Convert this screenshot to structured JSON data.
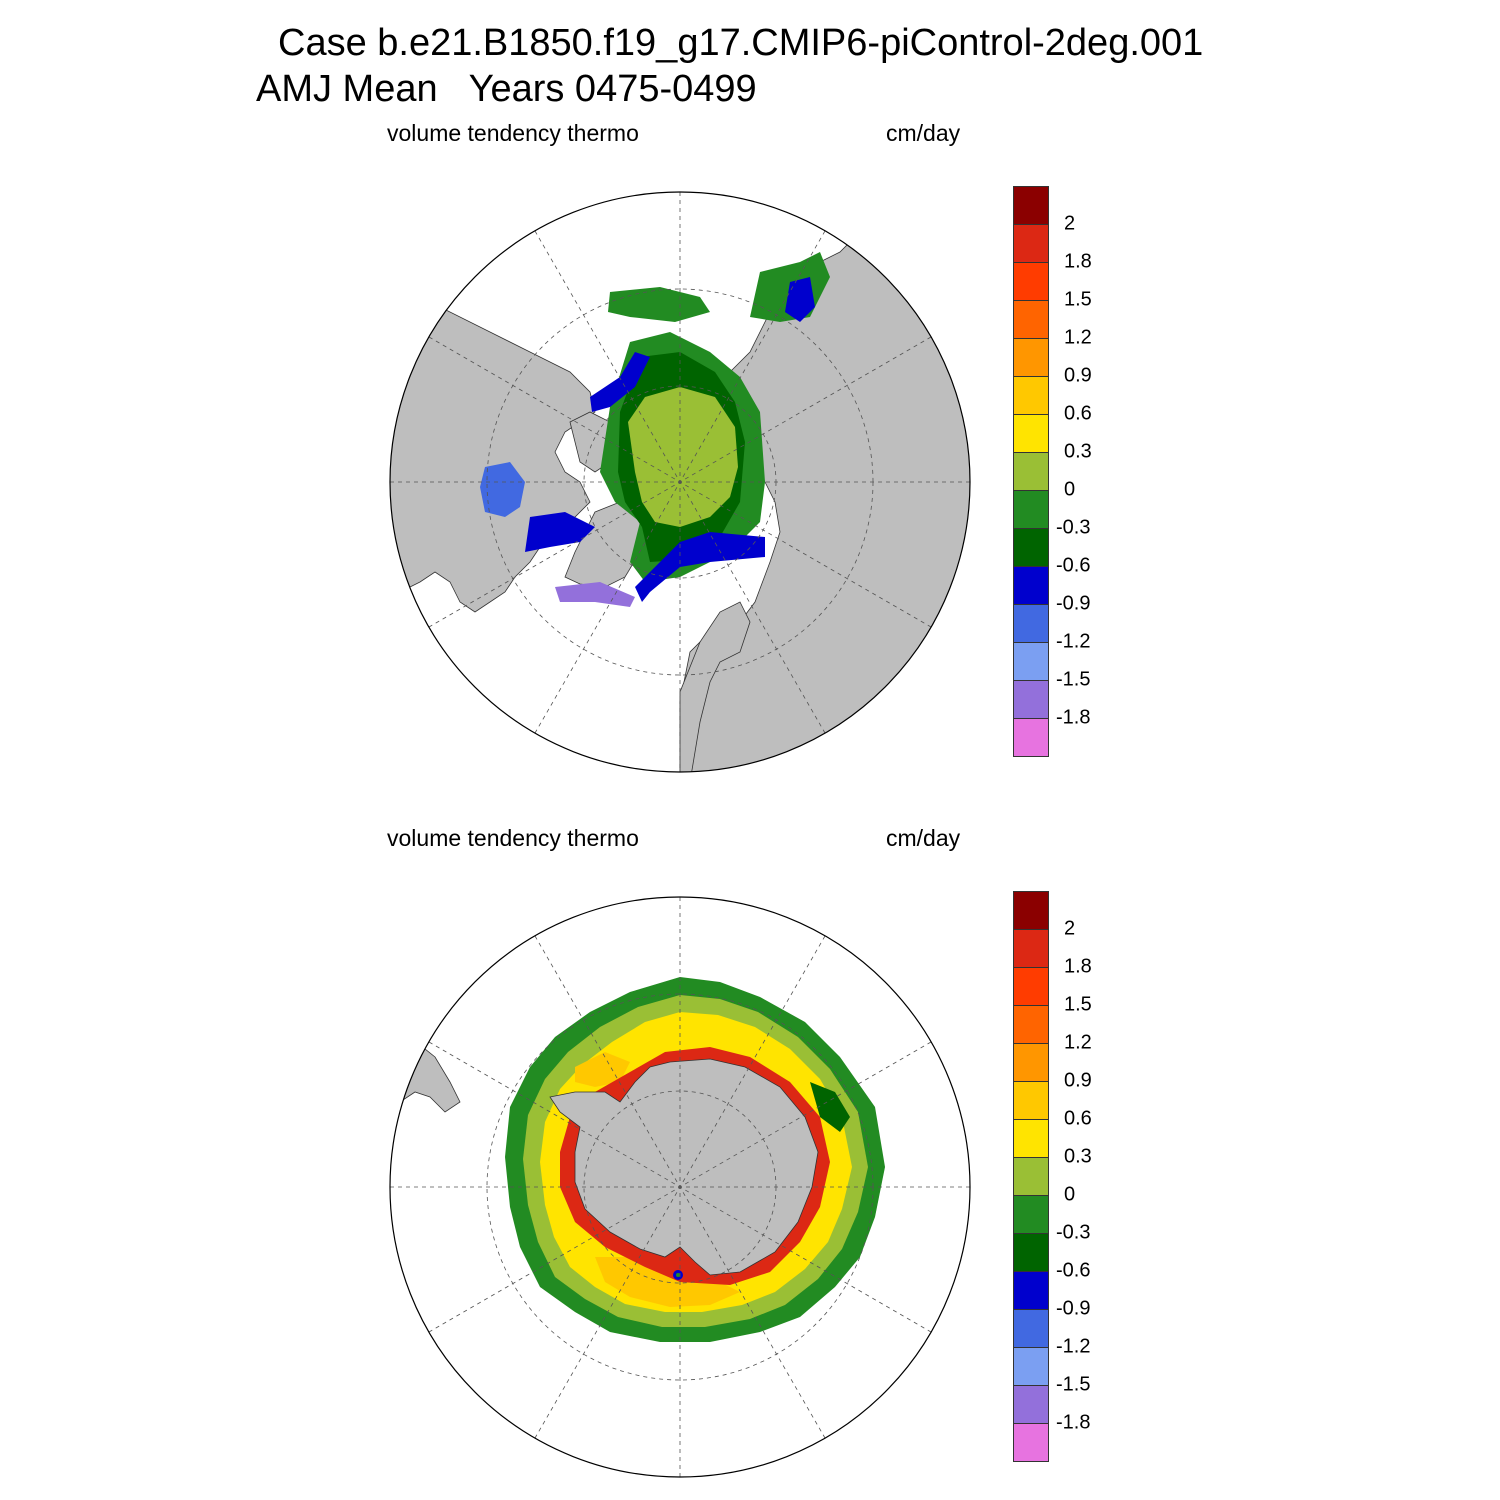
{
  "title_line1": "Case b.e21.B1850.f19_g17.CMIP6-piControl-2deg.001",
  "title_line2": "AMJ Mean   Years 0475-0499",
  "panels": [
    {
      "id": "north",
      "left_label": "volume tendency thermo",
      "right_label": "cm/day",
      "hemisphere": "Arctic (Northern Hemisphere polar stereographic)"
    },
    {
      "id": "south",
      "left_label": "volume tendency thermo",
      "right_label": "cm/day",
      "hemisphere": "Antarctic (Southern Hemisphere polar stereographic)"
    }
  ],
  "colorbar": {
    "labels": [
      "2",
      "1.8",
      "1.5",
      "1.2",
      "0.9",
      "0.6",
      "0.3",
      "0",
      "-0.3",
      "-0.6",
      "-0.9",
      "-1.2",
      "-1.5",
      "-1.8"
    ],
    "colors": [
      "#8b0000",
      "#dc2814",
      "#ff3c00",
      "#ff6400",
      "#ff9600",
      "#ffc800",
      "#ffe400",
      "#9abf35",
      "#228b22",
      "#006400",
      "#0000cd",
      "#4169e1",
      "#7b9ff2",
      "#9370db",
      "#e773e0"
    ]
  },
  "colors": {
    "land": "#bebebe",
    "ocean": "#ffffff",
    "grid": "#555555"
  }
}
